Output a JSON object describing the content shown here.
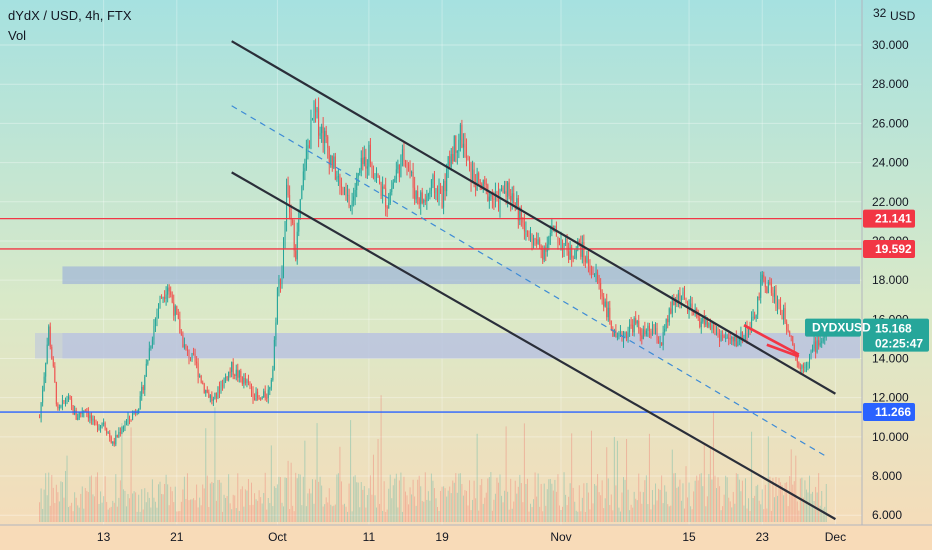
{
  "header": {
    "title": "dYdX / USD, 4h, FTX",
    "volume_label": "Vol"
  },
  "chart_data": {
    "type": "candlestick",
    "symbol": "DYDXUSD",
    "currency_label": "USD",
    "y_top_partial_label": "32",
    "ylim": [
      5.5,
      32.3
    ],
    "y_ticks": [
      30,
      28,
      26,
      24,
      22,
      20,
      18,
      16,
      14,
      12,
      10,
      8,
      6
    ],
    "y_tick_labels": [
      "30.000",
      "28.000",
      "26.000",
      "24.000",
      "22.000",
      "20.000",
      "18.000",
      "16.000",
      "14.000",
      "12.000",
      "10.000",
      "8.000",
      "6.000"
    ],
    "x_ticks": [
      {
        "label": "13",
        "day": -18
      },
      {
        "label": "21",
        "day": -10
      },
      {
        "label": "Oct",
        "day": 1
      },
      {
        "label": "11",
        "day": 11
      },
      {
        "label": "19",
        "day": 19
      },
      {
        "label": "Nov",
        "day": 32
      },
      {
        "label": "15",
        "day": 46
      },
      {
        "label": "23",
        "day": 54
      },
      {
        "label": "Dec",
        "day": 62
      }
    ],
    "xlim_days": [
      -25.5,
      62.5
    ],
    "price_path": [
      [
        -25,
        11.0
      ],
      [
        -24,
        15.5
      ],
      [
        -23,
        11.2
      ],
      [
        -22,
        12.0
      ],
      [
        -21,
        11.0
      ],
      [
        -20,
        11.5
      ],
      [
        -19,
        10.5
      ],
      [
        -18,
        10.8
      ],
      [
        -17,
        9.6
      ],
      [
        -16,
        10.5
      ],
      [
        -15,
        11.0
      ],
      [
        -14,
        11.8
      ],
      [
        -13,
        14.5
      ],
      [
        -12,
        16.8
      ],
      [
        -11,
        17.8
      ],
      [
        -10,
        16.0
      ],
      [
        -9,
        14.3
      ],
      [
        -8,
        13.8
      ],
      [
        -7,
        12.5
      ],
      [
        -6,
        11.8
      ],
      [
        -5,
        12.8
      ],
      [
        -4,
        13.5
      ],
      [
        -3,
        13.0
      ],
      [
        -2,
        12.5
      ],
      [
        -1,
        11.8
      ],
      [
        0,
        12.3
      ],
      [
        0.5,
        13.5
      ],
      [
        1,
        17.5
      ],
      [
        1.5,
        18.5
      ],
      [
        2,
        22.5
      ],
      [
        2.5,
        21.0
      ],
      [
        3,
        19.5
      ],
      [
        4,
        24.0
      ],
      [
        5,
        26.5
      ],
      [
        6,
        25.5
      ],
      [
        7,
        24.0
      ],
      [
        8,
        22.5
      ],
      [
        9,
        21.8
      ],
      [
        10,
        23.5
      ],
      [
        11,
        24.5
      ],
      [
        12,
        23.0
      ],
      [
        13,
        22.0
      ],
      [
        14,
        23.5
      ],
      [
        15,
        24.5
      ],
      [
        16,
        22.5
      ],
      [
        17,
        22.0
      ],
      [
        18,
        22.8
      ],
      [
        19,
        22.2
      ],
      [
        20,
        24.5
      ],
      [
        21,
        25.5
      ],
      [
        22,
        23.5
      ],
      [
        23,
        22.8
      ],
      [
        24,
        22.5
      ],
      [
        25,
        22.0
      ],
      [
        26,
        22.8
      ],
      [
        27,
        22.0
      ],
      [
        28,
        20.5
      ],
      [
        29,
        20.0
      ],
      [
        30,
        19.5
      ],
      [
        31,
        20.5
      ],
      [
        32,
        20.0
      ],
      [
        33,
        19.3
      ],
      [
        34,
        19.8
      ],
      [
        35,
        18.8
      ],
      [
        36,
        18.0
      ],
      [
        37,
        16.5
      ],
      [
        38,
        14.8
      ],
      [
        39,
        15.3
      ],
      [
        40,
        15.8
      ],
      [
        41,
        15.2
      ],
      [
        42,
        15.4
      ],
      [
        43,
        14.8
      ],
      [
        44,
        16.5
      ],
      [
        45,
        17.3
      ],
      [
        46,
        16.5
      ],
      [
        47,
        16.0
      ],
      [
        48,
        15.8
      ],
      [
        49,
        15.3
      ],
      [
        50,
        15.0
      ],
      [
        51,
        14.8
      ],
      [
        52,
        15.3
      ],
      [
        53,
        15.8
      ],
      [
        54,
        18.0
      ],
      [
        55,
        17.5
      ],
      [
        56,
        16.5
      ],
      [
        57,
        15.5
      ],
      [
        58,
        13.5
      ],
      [
        59,
        14.0
      ],
      [
        60,
        14.8
      ],
      [
        61,
        15.2
      ]
    ],
    "lines": [
      {
        "kind": "channel-upper",
        "color": "#2a2e39",
        "from": [
          -4,
          30.2
        ],
        "to": [
          62,
          12.2
        ]
      },
      {
        "kind": "channel-lower",
        "color": "#2a2e39",
        "from": [
          -4,
          23.5
        ],
        "to": [
          62,
          5.8
        ]
      },
      {
        "kind": "channel-mid",
        "color": "#3d8bd6",
        "dashed": true,
        "from": [
          -4,
          26.9
        ],
        "to": [
          61,
          9.0
        ]
      },
      {
        "kind": "wedge-top",
        "color": "#f23645",
        "from": [
          52,
          15.7
        ],
        "to": [
          58,
          14.2
        ]
      },
      {
        "kind": "wedge-bottom",
        "color": "#f23645",
        "from": [
          54.5,
          14.7
        ],
        "to": [
          58,
          14.1
        ]
      }
    ],
    "zones": [
      {
        "name": "resistance-zone",
        "from": 17.8,
        "to": 18.7,
        "color": "#9bb0d8"
      },
      {
        "name": "support-zone",
        "from": 14.0,
        "to": 15.3,
        "color": "#b9c3e0"
      }
    ],
    "levels": [
      {
        "name": "level-upper",
        "value": 21.141,
        "label": "21.141",
        "color": "#f23645"
      },
      {
        "name": "level-middle",
        "value": 19.592,
        "label": "19.592",
        "color": "#f23645"
      },
      {
        "name": "level-lower",
        "value": 11.266,
        "label": "11.266",
        "color": "#2962ff"
      }
    ],
    "last_price": {
      "value": 15.168,
      "label": "15.168",
      "countdown": "02:25:47",
      "color": "#26a69a"
    },
    "volume_max": 1
  }
}
